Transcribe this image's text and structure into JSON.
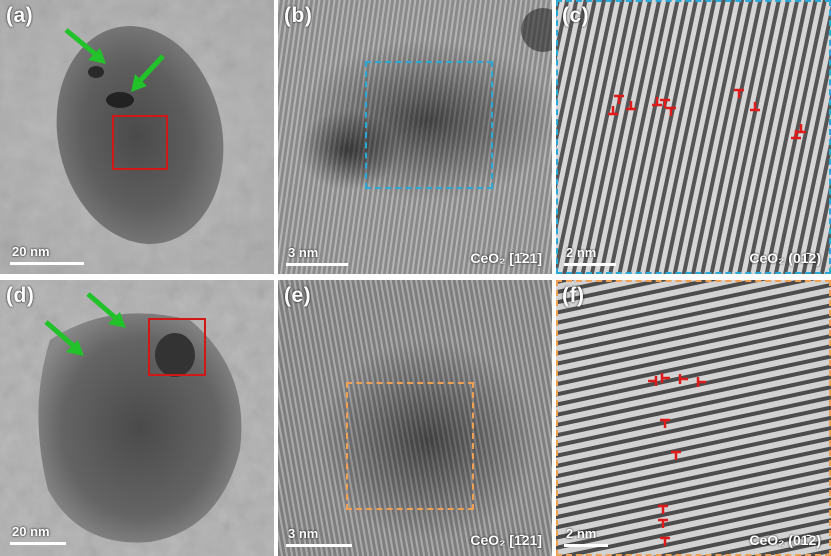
{
  "figure": {
    "panels": [
      {
        "id": "a",
        "label": "(a)",
        "scale_bar": "20 nm"
      },
      {
        "id": "b",
        "label": "(b)",
        "scale_bar": "3 nm",
        "lattice_label": "CeO₂ [1̄21]"
      },
      {
        "id": "c",
        "label": "(c)",
        "scale_bar": "2 nm",
        "lattice_label": "CeO₂ (01̄2)"
      },
      {
        "id": "d",
        "label": "(d)",
        "scale_bar": "20 nm"
      },
      {
        "id": "e",
        "label": "(e)",
        "scale_bar": "3 nm",
        "lattice_label": "CeO₂ [1̄21]"
      },
      {
        "id": "f",
        "label": "(f)",
        "scale_bar": "2 nm",
        "lattice_label": "CeO₂ (01̄2)"
      }
    ],
    "colors": {
      "arrow": "#22c22a",
      "roi_box_a_d": "#d01818",
      "roi_box_b_c": "#2aa8d8",
      "roi_box_e_f": "#f0a050",
      "dislocation_marker": "#e01a1a",
      "label_text": "#ffffff"
    },
    "icons": {
      "arrow": "green-arrow-icon",
      "dislocation": "dislocation-symbol-icon"
    }
  }
}
